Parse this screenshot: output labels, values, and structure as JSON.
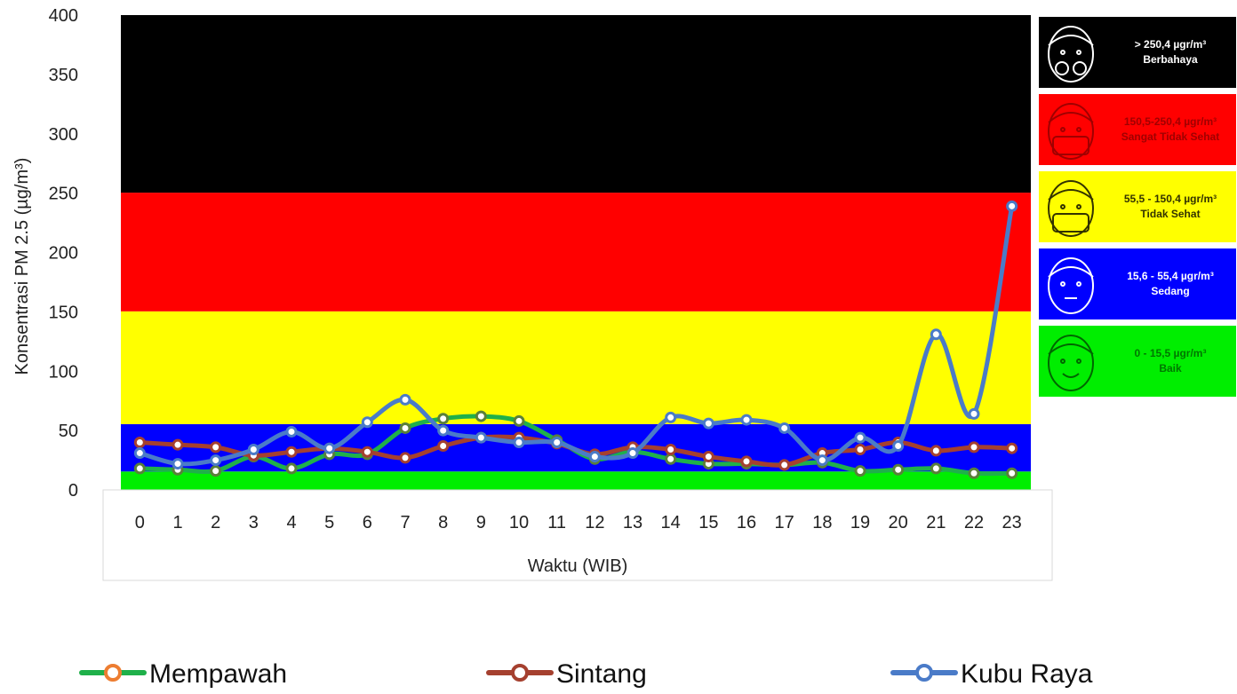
{
  "chart_data": {
    "type": "line",
    "ylabel": "Konsentrasi PM 2.5 (µg/m³)",
    "xlabel": "Waktu (WIB)",
    "ylim": [
      0,
      400
    ],
    "yticks": [
      "0",
      "50",
      "100",
      "150",
      "200",
      "250",
      "300",
      "350",
      "400"
    ],
    "x": [
      "0",
      "1",
      "2",
      "3",
      "4",
      "5",
      "6",
      "7",
      "8",
      "9",
      "10",
      "11",
      "12",
      "13",
      "14",
      "15",
      "16",
      "17",
      "18",
      "19",
      "20",
      "21",
      "22",
      "23"
    ],
    "bands": [
      {
        "from": 0,
        "to": 15.5,
        "color": "#00ee00"
      },
      {
        "from": 15.5,
        "to": 55.4,
        "color": "#0000ff"
      },
      {
        "from": 55.4,
        "to": 150.4,
        "color": "#ffff00"
      },
      {
        "from": 150.4,
        "to": 250.4,
        "color": "#ff0000"
      },
      {
        "from": 250.4,
        "to": 400,
        "color": "#000000"
      }
    ],
    "series": [
      {
        "name": "Mempawah",
        "color": "#1fb04a",
        "marker_stroke": "#ed7d31",
        "values": [
          18,
          17,
          16,
          28,
          18,
          30,
          30,
          52,
          60,
          62,
          58,
          42,
          26,
          32,
          26,
          22,
          22,
          21,
          23,
          16,
          17,
          18,
          14,
          14
        ]
      },
      {
        "name": "Sintang",
        "color": "#a5402f",
        "marker_stroke": "#a5402f",
        "values": [
          40,
          38,
          36,
          29,
          32,
          35,
          32,
          27,
          37,
          44,
          44,
          39,
          30,
          36,
          34,
          28,
          24,
          21,
          31,
          34,
          40,
          33,
          36,
          35
        ]
      },
      {
        "name": "Kubu Raya",
        "color": "#4a7bc8",
        "marker_stroke": "#4a7bc8",
        "values": [
          31,
          22,
          25,
          34,
          49,
          35,
          57,
          76,
          50,
          44,
          40,
          40,
          28,
          31,
          61,
          56,
          59,
          52,
          25,
          44,
          37,
          131,
          64,
          239
        ]
      }
    ],
    "legend_position": "bottom"
  },
  "categories": [
    {
      "range": "> 250,4 µgr/m³",
      "label": "Berbahaya",
      "bg": "#000000",
      "fg": "#ffffff",
      "icon": "respirator-mask-face-icon"
    },
    {
      "range": "150,5-250,4 µgr/m³",
      "label": "Sangat Tidak Sehat",
      "bg": "#ff0000",
      "fg": "#a00000",
      "icon": "filter-mask-face-icon"
    },
    {
      "range": "55,5 - 150,4 µgr/m³",
      "label": "Tidak Sehat",
      "bg": "#ffff00",
      "fg": "#333300",
      "icon": "surgical-mask-face-icon"
    },
    {
      "range": "15,6 - 55,4 µgr/m³",
      "label": "Sedang",
      "bg": "#0000ff",
      "fg": "#ffffff",
      "icon": "neutral-face-icon"
    },
    {
      "range": "0 - 15,5 µgr/m³",
      "label": "Baik",
      "bg": "#00ee00",
      "fg": "#007700",
      "icon": "smiling-face-icon"
    }
  ]
}
